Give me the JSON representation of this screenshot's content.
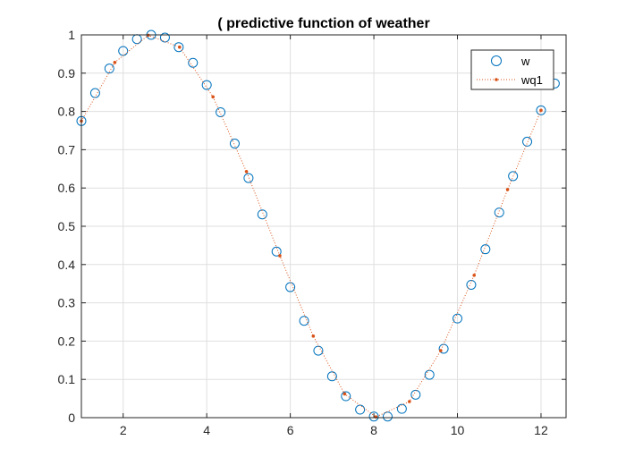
{
  "chart_data": {
    "type": "scatter",
    "title": "( predictive function of weather",
    "xlabel": "",
    "ylabel": "",
    "xlim": [
      1,
      12.6
    ],
    "ylim": [
      0,
      1
    ],
    "xticks": [
      2,
      4,
      6,
      8,
      10,
      12
    ],
    "yticks": [
      0,
      0.1,
      0.2,
      0.3,
      0.4,
      0.5,
      0.6,
      0.7,
      0.8,
      0.9,
      1
    ],
    "grid": true,
    "legend_position": "top-right",
    "series": [
      {
        "name": "w",
        "marker": "circle",
        "line": "none",
        "color": "#0072BD",
        "points": [
          [
            1.0,
            0.775
          ],
          [
            1.33,
            0.848
          ],
          [
            1.67,
            0.912
          ],
          [
            2.0,
            0.958
          ],
          [
            2.33,
            0.989
          ],
          [
            2.67,
            1.0
          ],
          [
            3.0,
            0.993
          ],
          [
            3.33,
            0.968
          ],
          [
            3.67,
            0.927
          ],
          [
            4.0,
            0.869
          ],
          [
            4.33,
            0.798
          ],
          [
            4.67,
            0.716
          ],
          [
            5.0,
            0.626
          ],
          [
            5.33,
            0.531
          ],
          [
            5.67,
            0.434
          ],
          [
            6.0,
            0.341
          ],
          [
            6.33,
            0.253
          ],
          [
            6.67,
            0.175
          ],
          [
            7.0,
            0.108
          ],
          [
            7.33,
            0.056
          ],
          [
            7.67,
            0.021
          ],
          [
            8.0,
            0.003
          ],
          [
            8.33,
            0.003
          ],
          [
            8.67,
            0.023
          ],
          [
            9.0,
            0.06
          ],
          [
            9.33,
            0.112
          ],
          [
            9.67,
            0.18
          ],
          [
            10.0,
            0.259
          ],
          [
            10.33,
            0.347
          ],
          [
            10.67,
            0.44
          ],
          [
            11.0,
            0.536
          ],
          [
            11.33,
            0.631
          ],
          [
            11.67,
            0.721
          ],
          [
            12.0,
            0.803
          ],
          [
            12.33,
            0.873
          ]
        ]
      },
      {
        "name": "wq1",
        "marker": "dot",
        "line": "dotted",
        "color": "#D95319",
        "points": [
          [
            1.0,
            0.775
          ],
          [
            1.8,
            0.928
          ],
          [
            2.6,
            0.999
          ],
          [
            3.35,
            0.968
          ],
          [
            4.15,
            0.838
          ],
          [
            4.95,
            0.643
          ],
          [
            5.75,
            0.423
          ],
          [
            6.55,
            0.213
          ],
          [
            7.3,
            0.062
          ],
          [
            8.05,
            0.002
          ],
          [
            8.85,
            0.042
          ],
          [
            9.6,
            0.175
          ],
          [
            10.4,
            0.372
          ],
          [
            11.2,
            0.596
          ],
          [
            12.0,
            0.803
          ]
        ]
      }
    ]
  },
  "colors": {
    "axes": "#262626",
    "grid": "#dfdfdf",
    "background": "#ffffff"
  }
}
